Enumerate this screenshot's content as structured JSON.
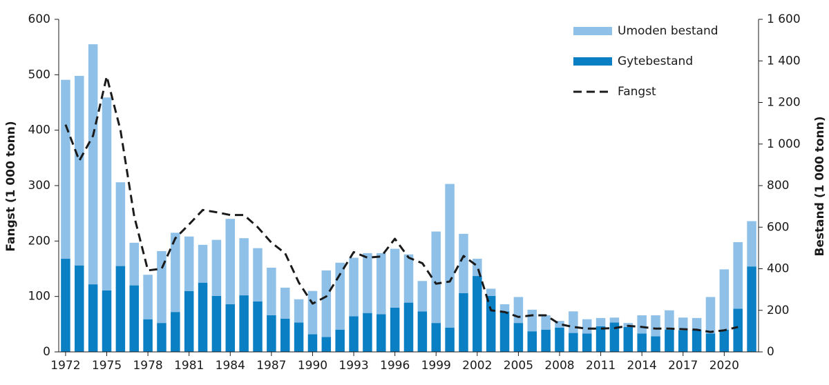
{
  "chart_data": {
    "type": "bar",
    "ylabel": "Fangst (1 000 tonn)",
    "y2label": "Bestand (1 000 tonn)",
    "categories": [
      "1972",
      null,
      null,
      "1975",
      null,
      null,
      "1978",
      null,
      null,
      "1981",
      null,
      null,
      "1984",
      null,
      null,
      "1987",
      null,
      null,
      "1990",
      null,
      null,
      "1993",
      null,
      null,
      "1996",
      null,
      null,
      "1999",
      null,
      null,
      "2002",
      null,
      null,
      "2005",
      null,
      null,
      "2008",
      null,
      null,
      "2011",
      null,
      null,
      "2014",
      null,
      null,
      "2017",
      null,
      null,
      "2020",
      null,
      null
    ],
    "ylim": [
      0,
      600
    ],
    "yticks": [
      0,
      100,
      200,
      300,
      400,
      500,
      600
    ],
    "y2lim": [
      0,
      1600
    ],
    "y2ticks": [
      0,
      200,
      400,
      600,
      800,
      {
        "value": 1000,
        "label": "1 000"
      },
      {
        "value": 1200,
        "label": "1 200"
      },
      {
        "value": 1400,
        "label": "1 400"
      },
      {
        "value": 1600,
        "label": "1 600"
      }
    ],
    "stacked": true,
    "series": [
      {
        "name": "Gytebestand",
        "type": "bar",
        "axis": "y2",
        "color": "#0b7fc3",
        "values": [
          448,
          416,
          325,
          296,
          413,
          320,
          157,
          139,
          192,
          293,
          333,
          269,
          229,
          272,
          243,
          176,
          160,
          141,
          85,
          72,
          107,
          171,
          187,
          181,
          213,
          237,
          195,
          139,
          117,
          283,
          365,
          269,
          195,
          139,
          99,
          107,
          117,
          91,
          88,
          123,
          141,
          120,
          88,
          75,
          107,
          104,
          107,
          88,
          107,
          208,
          411
        ]
      },
      {
        "name": "Umoden bestand",
        "type": "bar",
        "axis": "y2",
        "color": "#8ec0e8",
        "values": [
          861,
          912,
          1155,
          928,
          403,
          205,
          214,
          346,
          381,
          262,
          182,
          270,
          411,
          275,
          256,
          229,
          149,
          112,
          208,
          320,
          322,
          282,
          288,
          294,
          283,
          232,
          146,
          440,
          691,
          285,
          83,
          35,
          34,
          125,
          104,
          69,
          32,
          104,
          69,
          40,
          24,
          19,
          88,
          101,
          93,
          61,
          56,
          176,
          290,
          320,
          218
        ]
      },
      {
        "name": "Fangst",
        "type": "line",
        "color": "#1a1a1a",
        "dashed": true,
        "values": [
          410,
          345,
          390,
          497,
          400,
          245,
          147,
          150,
          205,
          230,
          256,
          252,
          247,
          247,
          225,
          197,
          178,
          125,
          87,
          100,
          140,
          180,
          170,
          172,
          204,
          170,
          160,
          123,
          127,
          173,
          155,
          75,
          72,
          63,
          66,
          66,
          50,
          45,
          42,
          42,
          43,
          47,
          45,
          42,
          42,
          41,
          40,
          36,
          39,
          45,
          null
        ]
      }
    ],
    "legend_order": [
      1,
      0,
      2
    ]
  }
}
